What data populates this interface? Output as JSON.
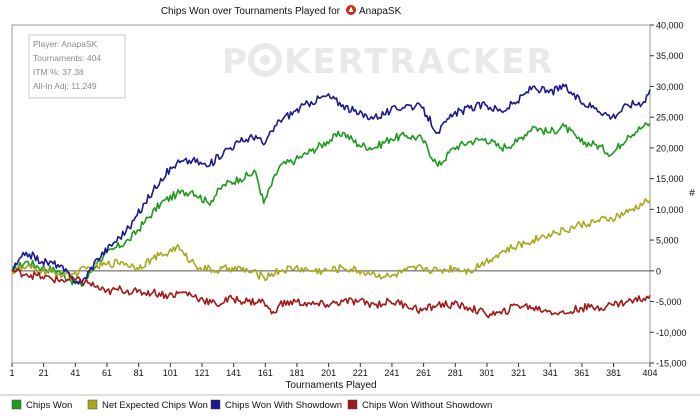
{
  "chart_data": {
    "type": "line",
    "title": "Chips Won over Tournaments Played for",
    "player_name": "AnapaSK",
    "xlabel": "Tournaments Played",
    "ylabel": "#",
    "xlim": [
      1,
      404
    ],
    "ylim": [
      -15000,
      40000
    ],
    "x_ticks": [
      1,
      21,
      41,
      61,
      81,
      101,
      121,
      141,
      161,
      181,
      201,
      221,
      241,
      261,
      281,
      301,
      321,
      341,
      361,
      381,
      404
    ],
    "y_ticks": [
      -15000,
      -10000,
      -5000,
      0,
      5000,
      10000,
      15000,
      20000,
      25000,
      30000,
      35000,
      40000
    ],
    "y_tick_labels": [
      "-15,000",
      "-10,000",
      "-5,000",
      "0",
      "5,000",
      "10,000",
      "15,000",
      "20,000",
      "25,000",
      "30,000",
      "35,000",
      "40,000"
    ],
    "grid": false,
    "zero_line": true,
    "legend_position": "bottom",
    "series": [
      {
        "name": "Chips Won",
        "color": "#1e9b1e",
        "x": [
          1,
          10,
          20,
          30,
          38,
          45,
          55,
          65,
          75,
          85,
          95,
          105,
          115,
          125,
          135,
          145,
          155,
          160,
          170,
          180,
          190,
          200,
          210,
          220,
          230,
          240,
          250,
          260,
          270,
          280,
          290,
          300,
          310,
          320,
          330,
          340,
          350,
          360,
          370,
          380,
          390,
          400,
          404
        ],
        "y": [
          0,
          1500,
          500,
          0,
          -1500,
          -2500,
          1500,
          3500,
          5000,
          8000,
          11000,
          12500,
          13000,
          11000,
          14000,
          15000,
          16000,
          11000,
          17000,
          18000,
          19500,
          21000,
          22500,
          20500,
          20000,
          21500,
          22000,
          21500,
          17000,
          20000,
          21000,
          21500,
          20000,
          21000,
          23500,
          22500,
          23500,
          21000,
          20500,
          19000,
          22000,
          23500,
          24000
        ]
      },
      {
        "name": "Net Expected Chips Won",
        "color": "#a8a820",
        "x": [
          1,
          10,
          20,
          30,
          40,
          50,
          60,
          70,
          80,
          90,
          100,
          105,
          110,
          120,
          130,
          140,
          150,
          160,
          170,
          180,
          190,
          200,
          210,
          220,
          230,
          240,
          250,
          260,
          270,
          280,
          290,
          300,
          310,
          320,
          330,
          340,
          350,
          360,
          370,
          380,
          390,
          400,
          404
        ],
        "y": [
          0,
          500,
          0,
          -500,
          -500,
          500,
          1000,
          1500,
          500,
          2000,
          3000,
          4000,
          2500,
          500,
          0,
          500,
          0,
          -1000,
          0,
          500,
          0,
          0,
          500,
          0,
          -500,
          -1000,
          0,
          500,
          0,
          500,
          0,
          1500,
          3000,
          4000,
          5000,
          6000,
          6500,
          7500,
          8000,
          8500,
          9500,
          11000,
          11500
        ]
      },
      {
        "name": "Chips Won With Showdown",
        "color": "#1a1a8c",
        "x": [
          1,
          10,
          20,
          30,
          38,
          45,
          55,
          65,
          75,
          85,
          95,
          105,
          115,
          125,
          135,
          145,
          155,
          160,
          170,
          180,
          190,
          200,
          210,
          220,
          230,
          240,
          250,
          260,
          270,
          280,
          290,
          300,
          310,
          320,
          330,
          340,
          350,
          360,
          370,
          380,
          390,
          400,
          404
        ],
        "y": [
          0,
          3000,
          1500,
          1000,
          -1000,
          -2000,
          2000,
          4500,
          7000,
          11000,
          15000,
          17500,
          18000,
          17000,
          19500,
          21000,
          22000,
          20500,
          24500,
          26000,
          27500,
          28500,
          27000,
          25500,
          25000,
          26000,
          27000,
          26500,
          22500,
          25500,
          26500,
          27000,
          26000,
          27500,
          30000,
          29000,
          30000,
          27500,
          26500,
          25000,
          27000,
          27500,
          29500
        ]
      },
      {
        "name": "Chips Won Without Showdown",
        "color": "#a01818",
        "x": [
          1,
          10,
          20,
          30,
          40,
          50,
          60,
          70,
          80,
          90,
          100,
          110,
          120,
          130,
          140,
          150,
          160,
          165,
          170,
          180,
          190,
          200,
          210,
          220,
          230,
          240,
          250,
          260,
          270,
          280,
          290,
          300,
          310,
          320,
          330,
          340,
          350,
          360,
          370,
          380,
          390,
          400,
          404
        ],
        "y": [
          0,
          -500,
          -1000,
          -1500,
          -1500,
          -2000,
          -3500,
          -3000,
          -3500,
          -3500,
          -4000,
          -3500,
          -4500,
          -5500,
          -4500,
          -5000,
          -5000,
          -7000,
          -5500,
          -5000,
          -5500,
          -5500,
          -5000,
          -5000,
          -5500,
          -5000,
          -5500,
          -6500,
          -5500,
          -5500,
          -6000,
          -7000,
          -7000,
          -5500,
          -6000,
          -6500,
          -7000,
          -6000,
          -6000,
          -5500,
          -5000,
          -4500,
          -4000
        ]
      }
    ]
  },
  "info_box": {
    "player_line": "Player: AnapaSK",
    "tournaments_line": "Tournaments: 404",
    "itm_line": "ITM %: 37.38",
    "allin_line": "All-In Adj: 11,249"
  },
  "watermark": {
    "left": "P",
    "right": "KERTRACKER"
  },
  "legend": [
    {
      "label": "Chips Won",
      "color": "#1e9b1e"
    },
    {
      "label": "Net Expected Chips Won",
      "color": "#a8a820"
    },
    {
      "label": "Chips Won With Showdown",
      "color": "#1a1a8c"
    },
    {
      "label": "Chips Won Without Showdown",
      "color": "#a01818"
    }
  ]
}
